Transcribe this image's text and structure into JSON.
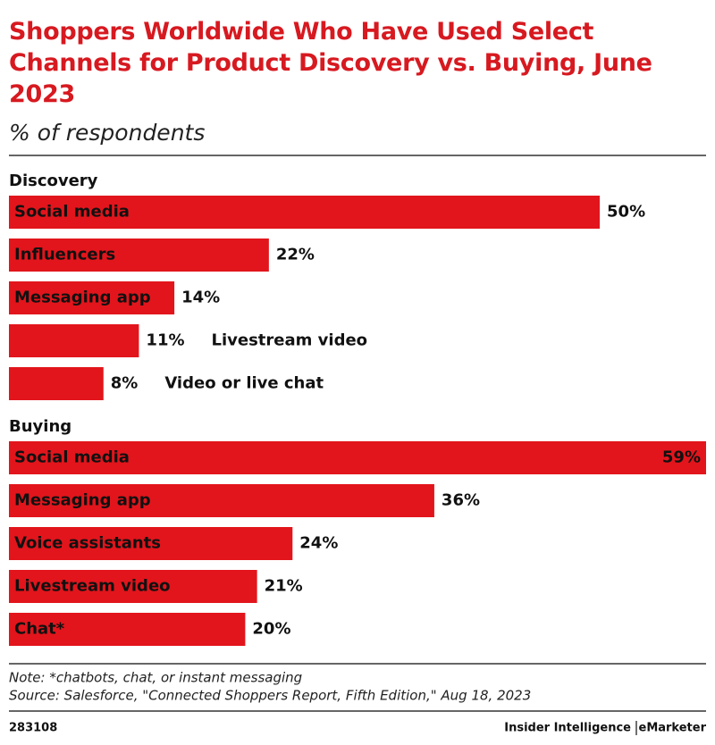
{
  "header": {
    "title": "Shoppers Worldwide Who Have Used Select Channels for Product Discovery vs. Buying, June 2023",
    "subtitle": "% of respondents"
  },
  "chart_data": [
    {
      "type": "bar",
      "orientation": "horizontal",
      "title": "Discovery",
      "color": "#e2151c",
      "categories": [
        "Social media",
        "Influencers",
        "Messaging app",
        "Livestream video",
        "Video or live chat"
      ],
      "values": [
        50,
        22,
        14,
        11,
        8
      ],
      "value_labels": [
        "50%",
        "22%",
        "14%",
        "11%",
        "8%"
      ]
    },
    {
      "type": "bar",
      "orientation": "horizontal",
      "title": "Buying",
      "color": "#e2151c",
      "categories": [
        "Social media",
        "Messaging app",
        "Voice assistants",
        "Livestream video",
        "Chat*"
      ],
      "values": [
        59,
        36,
        24,
        21,
        20
      ],
      "value_labels": [
        "59%",
        "36%",
        "24%",
        "21%",
        "20%"
      ]
    }
  ],
  "footer": {
    "note": "Note: *chatbots, chat, or instant messaging",
    "source": "Source: Salesforce, \"Connected Shoppers Report, Fifth Edition,\" Aug 18, 2023",
    "chart_id": "283108",
    "brand": [
      "Insider Intelligence",
      "eMarketer"
    ]
  }
}
